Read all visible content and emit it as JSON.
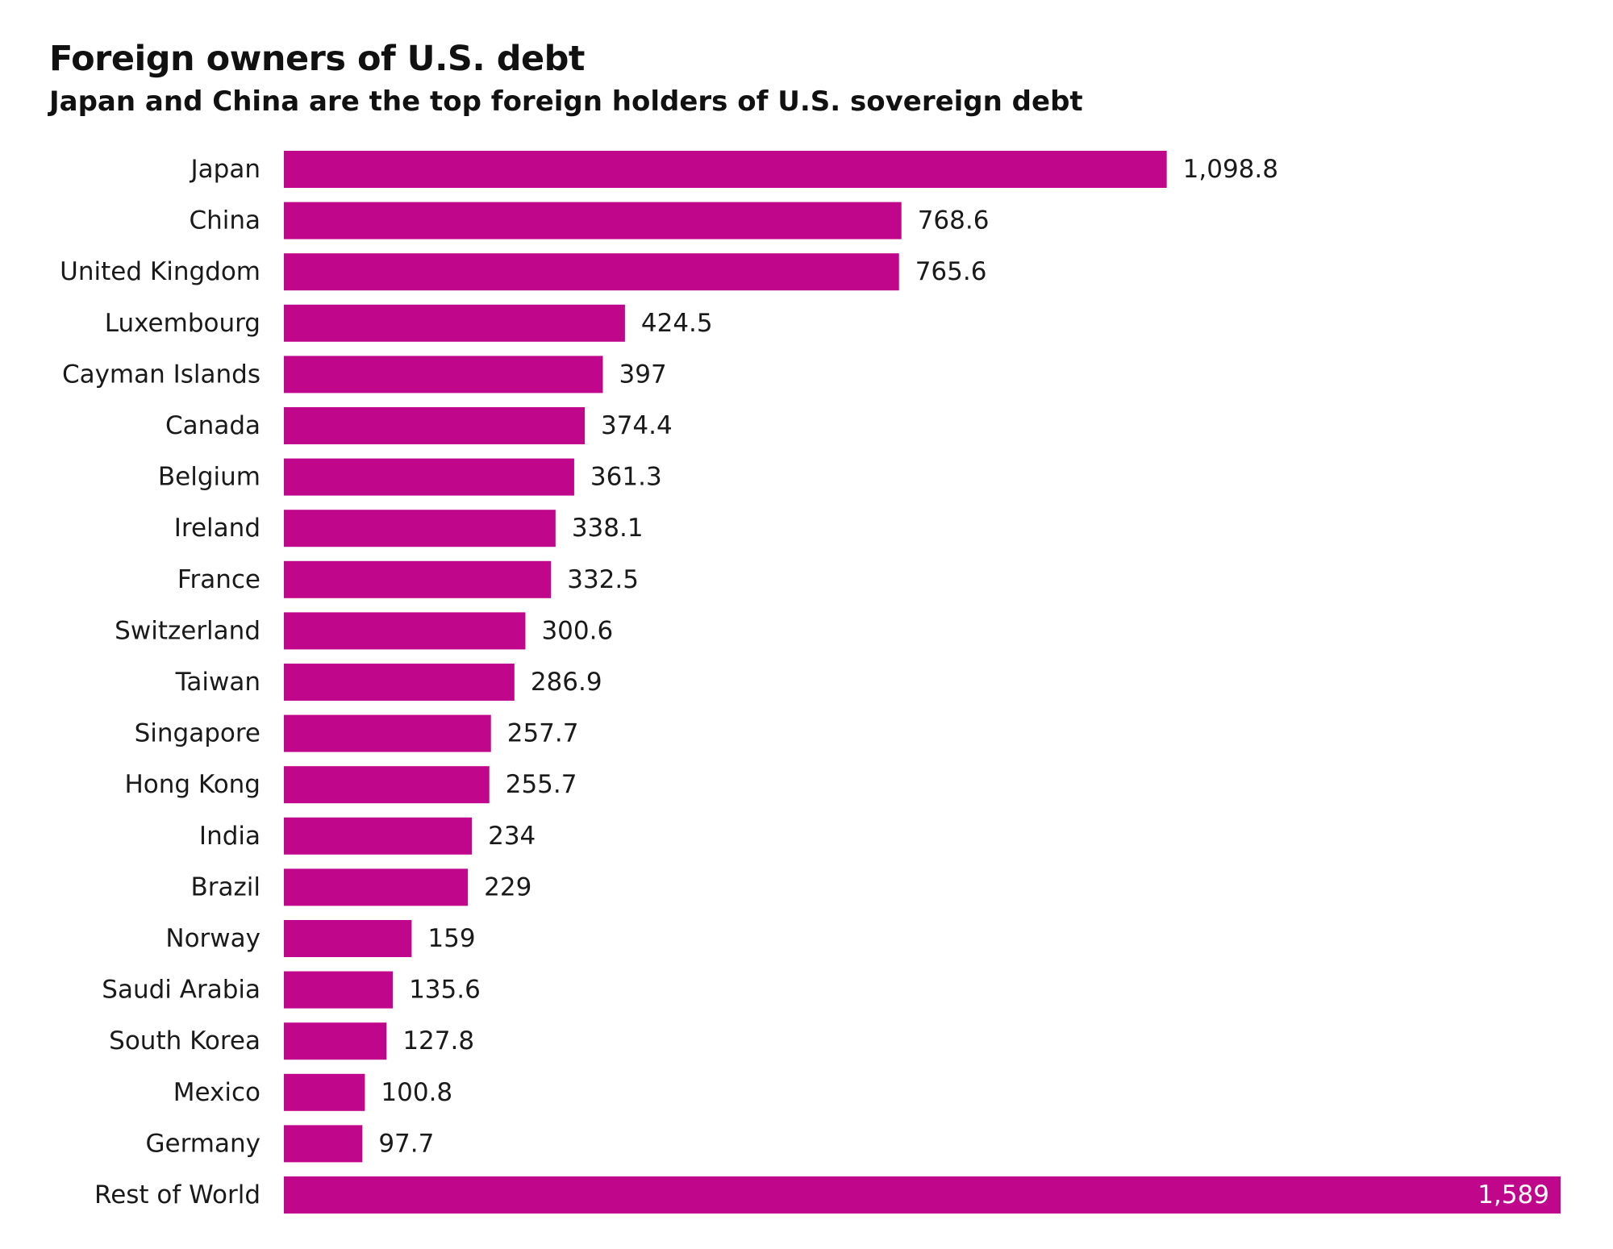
{
  "header": {
    "title": "Foreign owners of U.S. debt",
    "subtitle": "Japan and China are the top foreign holders of U.S. sovereign debt"
  },
  "colors": {
    "bar": "#C0068A",
    "text": "#1a1a1a",
    "inside_label": "#ffffff"
  },
  "chart_data": {
    "type": "bar",
    "orientation": "horizontal",
    "title": "Foreign owners of U.S. debt",
    "subtitle": "Japan and China are the top foreign holders of U.S. sovereign debt",
    "xlabel": "",
    "ylabel": "",
    "grid": false,
    "legend": "none",
    "xlim": [
      0,
      1589
    ],
    "categories": [
      "Japan",
      "China",
      "United Kingdom",
      "Luxembourg",
      "Cayman Islands",
      "Canada",
      "Belgium",
      "Ireland",
      "France",
      "Switzerland",
      "Taiwan",
      "Singapore",
      "Hong Kong",
      "India",
      "Brazil",
      "Norway",
      "Saudi Arabia",
      "South Korea",
      "Mexico",
      "Germany",
      "Rest of World"
    ],
    "values": [
      1098.8,
      768.6,
      765.6,
      424.5,
      397,
      374.4,
      361.3,
      338.1,
      332.5,
      300.6,
      286.9,
      257.7,
      255.7,
      234,
      229,
      159,
      135.6,
      127.8,
      100.8,
      97.7,
      1589
    ],
    "value_labels": [
      "1,098.8",
      "768.6",
      "765.6",
      "424.5",
      "397",
      "374.4",
      "361.3",
      "338.1",
      "332.5",
      "300.6",
      "286.9",
      "257.7",
      "255.7",
      "234",
      "229",
      "159",
      "135.6",
      "127.8",
      "100.8",
      "97.7",
      "1,589"
    ]
  }
}
